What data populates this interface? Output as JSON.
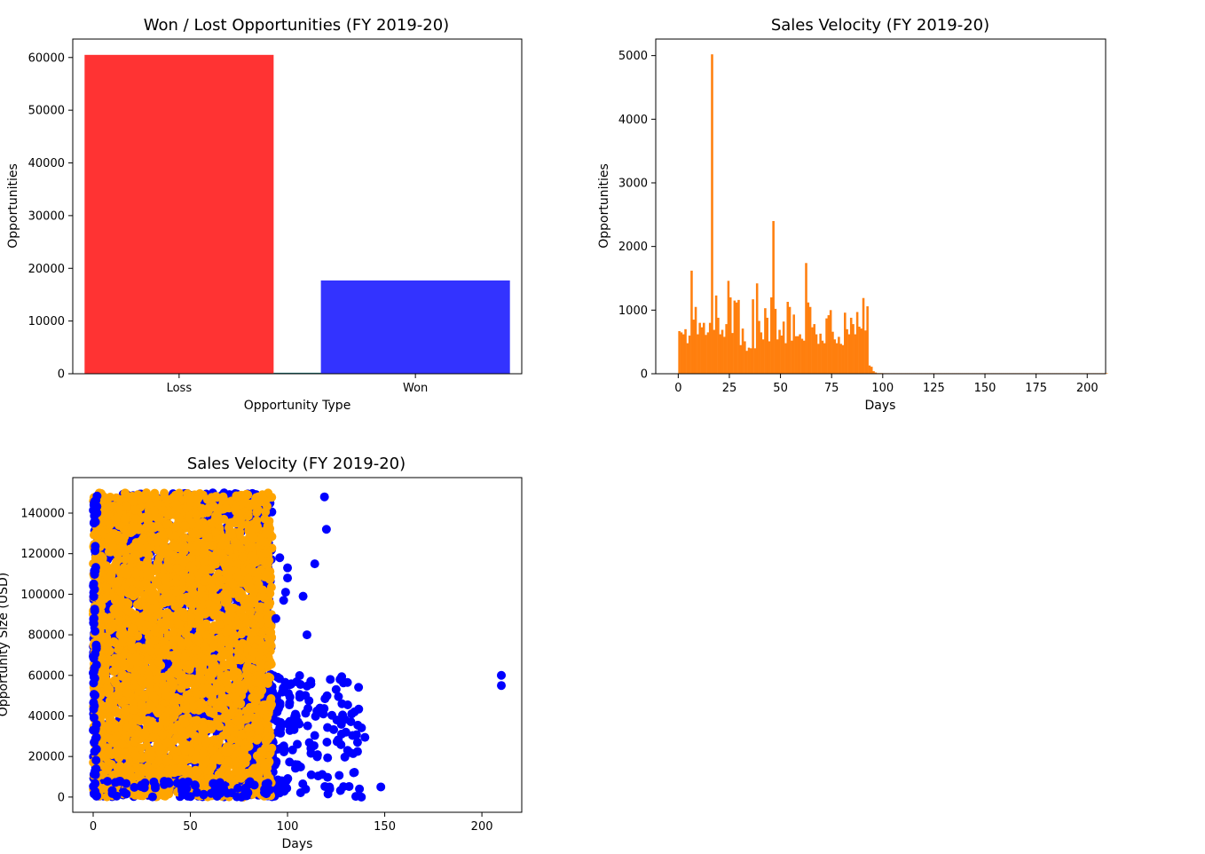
{
  "charts": [
    {
      "id": "wonlost",
      "type": "bar",
      "title": "Won / Lost Opportunities (FY 2019-20)",
      "xlabel": "Opportunity Type",
      "ylabel": "Opportunities",
      "categories": [
        "Loss",
        "Won"
      ],
      "values": [
        60500,
        17700
      ],
      "colors": [
        "#ff3333",
        "#3333ff"
      ],
      "ylim": [
        0,
        63500
      ],
      "yticks": [
        0,
        10000,
        20000,
        30000,
        40000,
        50000,
        60000
      ],
      "ytick_labels": [
        "0",
        "10000",
        "20000",
        "30000",
        "40000",
        "50000",
        "60000"
      ],
      "xtick_labels": [
        "Loss",
        "Won"
      ]
    },
    {
      "id": "velocity_hist",
      "type": "bar",
      "title": "Sales Velocity (FY 2019-20)",
      "xlabel": "Days",
      "ylabel": "Opportunities",
      "color": "#ff7f0e",
      "xlim": [
        -11,
        209
      ],
      "ylim": [
        0,
        5260
      ],
      "xticks": [
        0,
        25,
        50,
        75,
        100,
        125,
        150,
        175,
        200
      ],
      "xtick_labels": [
        "0",
        "25",
        "50",
        "75",
        "100",
        "125",
        "150",
        "175",
        "200"
      ],
      "yticks": [
        0,
        1000,
        2000,
        3000,
        4000,
        5000
      ],
      "ytick_labels": [
        "0",
        "1000",
        "2000",
        "3000",
        "4000",
        "5000"
      ],
      "bin_start": 0,
      "bin_width": 1,
      "counts": [
        670,
        650,
        620,
        700,
        480,
        600,
        1620,
        850,
        1050,
        620,
        800,
        730,
        800,
        610,
        650,
        800,
        5020,
        690,
        1230,
        880,
        620,
        690,
        580,
        780,
        1460,
        1200,
        640,
        1150,
        1120,
        1160,
        450,
        710,
        510,
        360,
        410,
        400,
        1170,
        400,
        1420,
        830,
        650,
        540,
        1030,
        880,
        510,
        1200,
        2400,
        1020,
        540,
        690,
        600,
        820,
        480,
        1130,
        1050,
        520,
        930,
        590,
        590,
        620,
        550,
        520,
        1740,
        1120,
        1050,
        730,
        780,
        620,
        470,
        630,
        520,
        480,
        870,
        920,
        1000,
        660,
        540,
        480,
        580,
        470,
        450,
        960,
        700,
        620,
        880,
        780,
        620,
        970,
        740,
        710,
        1190,
        680,
        1060,
        130,
        110,
        40,
        20,
        10,
        10,
        10,
        5,
        5,
        5,
        5,
        5,
        3,
        3,
        3,
        2,
        2,
        2,
        2,
        2,
        2,
        3,
        2,
        2,
        2,
        2,
        2,
        2,
        2,
        2,
        2,
        2,
        2,
        2,
        2,
        2,
        2,
        2,
        2,
        2,
        2,
        2,
        2,
        2,
        2,
        2,
        2,
        2,
        2,
        2,
        2,
        2,
        2,
        2,
        2,
        2,
        2,
        2,
        2,
        2,
        2,
        2,
        2,
        2,
        2,
        2,
        2,
        2,
        2,
        2,
        2,
        2,
        2,
        2,
        2,
        2,
        2,
        2,
        2,
        2,
        2,
        2,
        2,
        2,
        2,
        2,
        2,
        2,
        2,
        2,
        2,
        2,
        2,
        2,
        2,
        2,
        2,
        2,
        2,
        2,
        2,
        2,
        2,
        2,
        2,
        2,
        2,
        2,
        2,
        2,
        2,
        2,
        2,
        2,
        2,
        2,
        2
      ]
    },
    {
      "id": "velocity_scatter",
      "type": "scatter",
      "title": "Sales Velocity (FY 2019-20)",
      "xlabel": "Days",
      "ylabel": "Opportunity Size (USD)",
      "xlim": [
        -10.5,
        220.5
      ],
      "ylim": [
        -7500,
        157500
      ],
      "xticks": [
        0,
        50,
        100,
        150,
        200
      ],
      "xtick_labels": [
        "0",
        "50",
        "100",
        "150",
        "200"
      ],
      "yticks": [
        0,
        20000,
        40000,
        60000,
        80000,
        100000,
        120000,
        140000
      ],
      "ytick_labels": [
        "0",
        "20000",
        "40000",
        "60000",
        "80000",
        "100000",
        "120000",
        "140000"
      ],
      "series": [
        {
          "color": "#0000ff",
          "dense_region": {
            "x": [
              0,
              92
            ],
            "y": [
              0,
              150000
            ],
            "count": 2200
          },
          "tail_region": {
            "x": [
              92,
              140
            ],
            "y": [
              0,
              60000
            ],
            "count": 170
          },
          "points": [
            [
              96,
              118000
            ],
            [
              100,
              113000
            ],
            [
              100,
              108000
            ],
            [
              98,
              97000
            ],
            [
              94,
              88000
            ],
            [
              99,
              101000
            ],
            [
              108,
              99000
            ],
            [
              110,
              80000
            ],
            [
              114,
              115000
            ],
            [
              119,
              148000
            ],
            [
              120,
              132000
            ],
            [
              122,
              58000
            ],
            [
              125,
              53000
            ],
            [
              127,
              58000
            ],
            [
              128,
              46000
            ],
            [
              130,
              32000
            ],
            [
              132,
              22000
            ],
            [
              133,
              41000
            ],
            [
              134,
              12000
            ],
            [
              136,
              27000
            ],
            [
              137,
              4000
            ],
            [
              138,
              0
            ],
            [
              148,
              5000
            ],
            [
              210,
              60000
            ],
            [
              210,
              55000
            ],
            [
              104,
              16000
            ],
            [
              106,
              36000
            ],
            [
              112,
              24000
            ]
          ]
        },
        {
          "color": "#ffa500",
          "dense_region": {
            "x": [
              0,
              92
            ],
            "y": [
              0,
              150000
            ],
            "count": 3000
          }
        }
      ]
    }
  ]
}
